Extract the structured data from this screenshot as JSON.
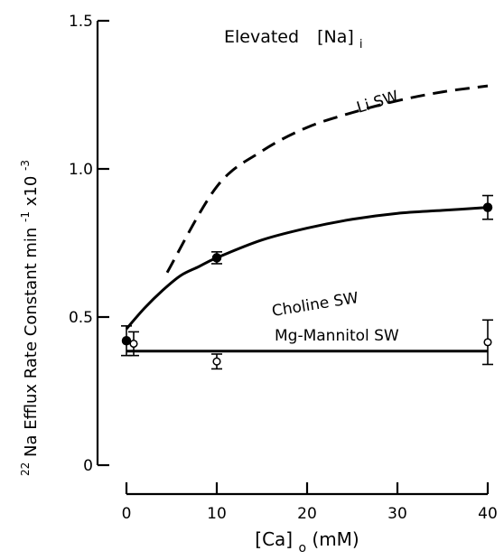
{
  "chart_data": {
    "type": "line",
    "title": "Elevated [Na]i",
    "title_main": "Elevated",
    "title_bracket": "[Na]",
    "title_sub": "i",
    "ylabel": "22Na Efflux Rate Constant min-1 x10-3",
    "ylabel_iso": "22",
    "ylabel_main": "Na Efflux Rate Constant min",
    "ylabel_exp1": "-1",
    "ylabel_mult": " x10",
    "ylabel_exp2": "-3",
    "xlabel": "[Ca]o (mM)",
    "xlabel_bracket": "[Ca]",
    "xlabel_sub": "o",
    "xlabel_unit": "(mM)",
    "xlim": [
      0,
      40
    ],
    "ylim": [
      0,
      1.5
    ],
    "xticks": [
      0,
      10,
      20,
      30,
      40
    ],
    "xtick_labels": [
      "0",
      "10",
      "20",
      "30",
      "40"
    ],
    "yticks": [
      0,
      0.5,
      1.0,
      1.5
    ],
    "ytick_labels": [
      "0",
      "0.5",
      "1.0",
      "1.5"
    ],
    "series": [
      {
        "name": "Li SW",
        "style": "dashed",
        "curve": {
          "x": [
            4.5,
            10,
            15,
            20,
            25,
            30,
            35,
            40
          ],
          "y": [
            0.65,
            0.94,
            1.06,
            1.14,
            1.19,
            1.23,
            1.26,
            1.28
          ]
        },
        "points": []
      },
      {
        "name": "Choline SW",
        "style": "solid",
        "marker": "filled",
        "curve": {
          "x": [
            0,
            2,
            4,
            6,
            8,
            10,
            15,
            20,
            25,
            30,
            35,
            40
          ],
          "y": [
            0.46,
            0.53,
            0.59,
            0.64,
            0.67,
            0.7,
            0.76,
            0.8,
            0.83,
            0.85,
            0.86,
            0.87
          ]
        },
        "points": [
          {
            "x": 0,
            "y": 0.42,
            "err": 0.05
          },
          {
            "x": 10,
            "y": 0.7,
            "err": 0.02
          },
          {
            "x": 40,
            "y": 0.87,
            "err": 0.04
          }
        ]
      },
      {
        "name": "Mg-Mannitol SW",
        "style": "solid",
        "marker": "open",
        "curve": {
          "x": [
            0,
            40
          ],
          "y": [
            0.385,
            0.385
          ]
        },
        "points": [
          {
            "x": 0.8,
            "y": 0.41,
            "err": 0.04
          },
          {
            "x": 10,
            "y": 0.35,
            "err": 0.025
          },
          {
            "x": 40,
            "y": 0.415,
            "err": 0.075
          }
        ]
      }
    ],
    "grid": false,
    "legend": "none"
  }
}
